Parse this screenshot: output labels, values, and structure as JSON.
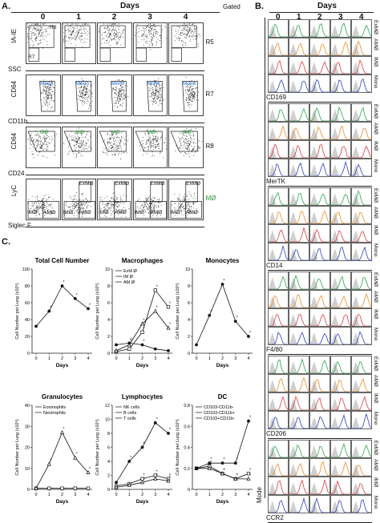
{
  "panelA": {
    "letter": "A.",
    "days_title": "Days",
    "gated_label": "Gated",
    "days": [
      "0",
      "1",
      "2",
      "3",
      "4"
    ],
    "rows": [
      {
        "y_axis": "IA-IE",
        "x_axis": "SSC",
        "gate": "R5",
        "annot": [
          "R8",
          "R7"
        ]
      },
      {
        "y_axis": "CD64",
        "x_axis": "CD11b",
        "gate": "R7",
        "annot": [
          "Mono"
        ]
      },
      {
        "y_axis": "CD64",
        "x_axis": "CD24",
        "gate": "R8",
        "annot": [
          "MØ"
        ]
      },
      {
        "y_axis": "LyC",
        "x_axis": "Siglec F",
        "gate": "MØ",
        "annot": [
          "IMØ",
          "AMØ",
          "ExMØ"
        ]
      }
    ],
    "colors": {
      "mono": "#1f6fd1",
      "mac": "#2a9a3a"
    }
  },
  "panelB": {
    "letter": "B.",
    "days_title": "Days",
    "days": [
      "0",
      "1",
      "2",
      "3",
      "4"
    ],
    "row_labels": [
      "ExMØ",
      "AMØ",
      "IMØ",
      "Mono"
    ],
    "row_colors": [
      "#2aa84a",
      "#f08a24",
      "#e23b3b",
      "#2a3fc2"
    ],
    "markers": [
      "CD169",
      "MerTK",
      "CD14",
      "F4/80",
      "CD206",
      "CCR2"
    ],
    "y_axis": "Mode"
  },
  "panelC": {
    "letter": "C.",
    "charts_yaxis": "Cell Number per Lung (x10⁶)",
    "charts_xaxis": "Days",
    "charts": [
      {
        "title": "Total Cell Number"
      },
      {
        "title": "Macrophages",
        "legend": [
          "ExM Ø",
          "IM Ø",
          "AM Ø"
        ]
      },
      {
        "title": "Monocytes"
      },
      {
        "title": "Granulocytes",
        "legend": [
          "Eosinophils",
          "Neutrophils"
        ]
      },
      {
        "title": "Lymphocytes",
        "legend": [
          "NK cells",
          "B cells",
          "T cells"
        ]
      },
      {
        "title": "DC",
        "legend": [
          "CD103-CD11b-",
          "CD103-CD11b+",
          "CD103+CD11b-"
        ]
      }
    ]
  },
  "chart_data": [
    {
      "type": "line",
      "title": "Total Cell Number",
      "xlabel": "Days",
      "ylabel": "Cell Number per Lung (x10⁶)",
      "x": [
        0,
        1,
        2,
        3,
        4
      ],
      "ylim": [
        0,
        100
      ],
      "yticks": [
        0,
        20,
        40,
        60,
        80,
        100
      ],
      "series": [
        {
          "values": [
            32,
            50,
            80,
            65,
            53
          ]
        }
      ]
    },
    {
      "type": "line",
      "title": "Macrophages",
      "xlabel": "Days",
      "ylabel": "Cell Number per Lung (x10⁶)",
      "x": [
        0,
        1,
        2,
        3,
        4
      ],
      "ylim": [
        0,
        10
      ],
      "yticks": [
        0,
        2,
        4,
        6,
        8,
        10
      ],
      "series": [
        {
          "name": "ExM Ø",
          "values": [
            0.2,
            0.5,
            2.5,
            7.5,
            5.5
          ]
        },
        {
          "name": "IM Ø",
          "values": [
            0.3,
            1.0,
            3.5,
            5.0,
            3.0
          ]
        },
        {
          "name": "AM Ø",
          "values": [
            1.0,
            1.2,
            1.0,
            0.5,
            0.3
          ]
        }
      ]
    },
    {
      "type": "line",
      "title": "Monocytes",
      "xlabel": "Days",
      "ylabel": "Cell Number per Lung (x10⁶)",
      "x": [
        0,
        1,
        2,
        3,
        4
      ],
      "ylim": [
        0,
        10
      ],
      "yticks": [
        0,
        2,
        4,
        6,
        8,
        10
      ],
      "series": [
        {
          "values": [
            1,
            4.5,
            8.2,
            3.8,
            2.0
          ]
        }
      ]
    },
    {
      "type": "line",
      "title": "Granulocytes",
      "xlabel": "Days",
      "ylabel": "Cell Number per Lung (x10⁶)",
      "x": [
        0,
        1,
        2,
        3,
        4
      ],
      "ylim": [
        0,
        40
      ],
      "yticks": [
        0,
        10,
        20,
        30,
        40
      ],
      "series": [
        {
          "name": "Eosinophils",
          "values": [
            0.5,
            0.5,
            0.5,
            0.5,
            0.5
          ]
        },
        {
          "name": "Neutrophils",
          "values": [
            0.5,
            12,
            27,
            15,
            8
          ]
        }
      ]
    },
    {
      "type": "line",
      "title": "Lymphocytes",
      "xlabel": "Days",
      "ylabel": "Cell Number per Lung (x10⁶)",
      "x": [
        0,
        1,
        2,
        3,
        4
      ],
      "ylim": [
        0,
        12
      ],
      "yticks": [
        0,
        2,
        4,
        6,
        8,
        10,
        12
      ],
      "series": [
        {
          "name": "NK cells",
          "values": [
            0.5,
            0.8,
            1.5,
            2.0,
            1.5
          ]
        },
        {
          "name": "B cells",
          "values": [
            0.3,
            0.6,
            1.0,
            1.5,
            1.2
          ]
        },
        {
          "name": "T cells",
          "values": [
            1,
            4,
            6,
            9.5,
            8
          ]
        }
      ]
    },
    {
      "type": "line",
      "title": "DC",
      "xlabel": "Days",
      "ylabel": "Cell Number per Lung (x10⁶)",
      "x": [
        0,
        1,
        2,
        3,
        4
      ],
      "ylim": [
        0,
        0.8
      ],
      "yticks": [
        0.0,
        0.2,
        0.4,
        0.6,
        0.8
      ],
      "series": [
        {
          "name": "CD103-CD11b-",
          "values": [
            0.2,
            0.22,
            0.15,
            0.1,
            0.15
          ]
        },
        {
          "name": "CD103-CD11b+",
          "values": [
            0.2,
            0.2,
            0.15,
            0.1,
            0.1
          ]
        },
        {
          "name": "CD103+CD11b-",
          "values": [
            0.2,
            0.25,
            0.25,
            0.25,
            0.65
          ]
        }
      ]
    }
  ]
}
